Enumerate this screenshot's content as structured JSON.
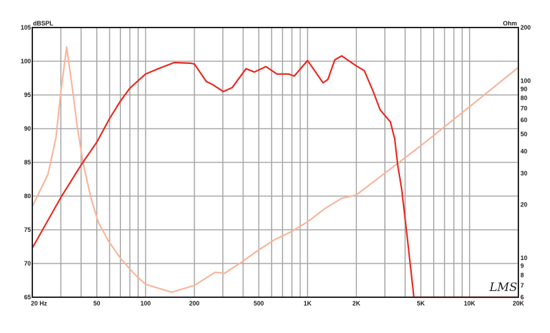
{
  "chart_data": {
    "type": "line",
    "xscale": "log",
    "xlim": [
      20,
      20000
    ],
    "ylim": [
      65,
      105
    ],
    "y2lim": [
      6,
      200
    ],
    "y2scale": "log",
    "grid": true,
    "ylabel": "dBSPL",
    "y2label": "Ohm",
    "x_tick_labels": [
      {
        "v": 20,
        "label": "20  Hz"
      },
      {
        "v": 50,
        "label": "50"
      },
      {
        "v": 100,
        "label": "100"
      },
      {
        "v": 200,
        "label": "200"
      },
      {
        "v": 500,
        "label": "500"
      },
      {
        "v": 1000,
        "label": "1K"
      },
      {
        "v": 2000,
        "label": "2K"
      },
      {
        "v": 5000,
        "label": "5K"
      },
      {
        "v": 10000,
        "label": "10K"
      },
      {
        "v": 20000,
        "label": "20K"
      }
    ],
    "y_ticks": [
      105,
      100,
      95,
      90,
      85,
      80,
      75,
      70,
      65
    ],
    "y2_ticks": [
      200,
      100,
      90,
      80,
      70,
      60,
      50,
      40,
      30,
      20,
      10,
      9,
      8,
      7,
      6
    ],
    "series": [
      {
        "axis": "left",
        "color": "#e8281e",
        "x": [
          20,
          30,
          40,
          50,
          60,
          70,
          80,
          100,
          120,
          150,
          190,
          200,
          237,
          261,
          302,
          343,
          417,
          469,
          554,
          647,
          765,
          827,
          1000,
          1098,
          1246,
          1334,
          1472,
          1623,
          1972,
          2239,
          2543,
          2804,
          3245,
          3450,
          3600,
          3810,
          4100,
          4530,
          20000
        ],
        "y": [
          72.3,
          79.8,
          84.6,
          88.0,
          91.5,
          94.1,
          96.0,
          98.1,
          98.9,
          99.8,
          99.7,
          99.6,
          97.0,
          96.5,
          95.5,
          96.1,
          98.9,
          98.4,
          99.2,
          98.1,
          98.1,
          97.8,
          100.1,
          98.7,
          96.8,
          97.3,
          100.2,
          100.8,
          99.4,
          98.6,
          95.5,
          92.8,
          91.0,
          88.5,
          84.6,
          81.0,
          74.4,
          65.0,
          65.0
        ]
      },
      {
        "axis": "right",
        "color": "#f9b49a",
        "x": [
          20,
          25,
          28,
          30,
          32.6,
          35.9,
          37.8,
          41.2,
          45.9,
          51.1,
          59,
          71,
          86.6,
          100,
          145,
          200,
          269,
          308,
          397,
          500,
          627,
          785,
          1000,
          1279,
          1624,
          2000,
          5000,
          10000,
          20000
        ],
        "y": [
          19.5,
          29.7,
          47.7,
          87,
          155,
          81.5,
          55.5,
          34.2,
          22.0,
          15.9,
          12.45,
          9.8,
          8.0,
          7.1,
          6.4,
          7.0,
          8.3,
          8.2,
          9.55,
          11.1,
          12.7,
          14.0,
          16.0,
          19.0,
          21.7,
          22.7,
          43,
          71.5,
          119
        ]
      }
    ],
    "watermark": "LMS"
  }
}
